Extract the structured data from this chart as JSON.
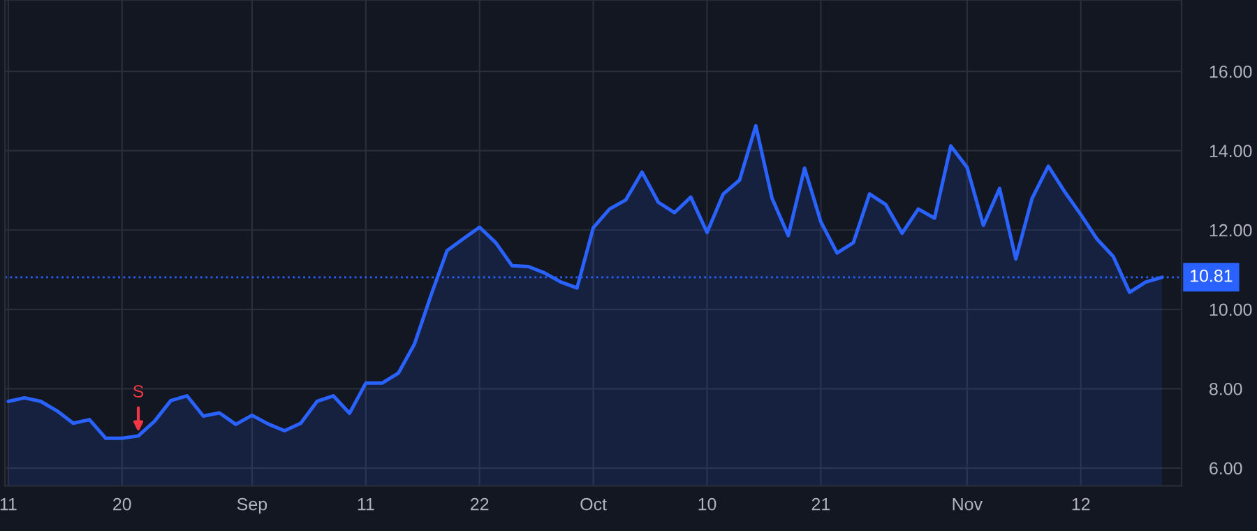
{
  "chart_data": {
    "type": "area",
    "categories": [
      "11",
      null,
      null,
      null,
      null,
      null,
      null,
      "20",
      null,
      null,
      null,
      null,
      null,
      null,
      null,
      "Sep",
      null,
      null,
      null,
      null,
      null,
      null,
      "11",
      null,
      null,
      null,
      null,
      null,
      null,
      "22",
      null,
      null,
      null,
      null,
      null,
      null,
      "Oct",
      null,
      null,
      null,
      null,
      null,
      null,
      "10",
      null,
      null,
      null,
      null,
      null,
      null,
      "21",
      null,
      null,
      null,
      null,
      null,
      null,
      null,
      null,
      "Nov",
      null,
      null,
      null,
      null,
      null,
      null,
      "12",
      null,
      null,
      null,
      null,
      null
    ],
    "series": [
      {
        "color": "#2962ff",
        "values": [
          7.68,
          7.77,
          7.68,
          7.44,
          7.13,
          7.22,
          6.75,
          6.75,
          6.81,
          7.18,
          7.7,
          7.82,
          7.31,
          7.39,
          7.1,
          7.33,
          7.11,
          6.94,
          7.13,
          7.68,
          7.82,
          7.38,
          8.14,
          8.14,
          8.39,
          9.13,
          10.34,
          11.48,
          11.78,
          12.07,
          11.68,
          11.1,
          11.08,
          10.92,
          10.69,
          10.54,
          12.06,
          12.53,
          12.76,
          13.46,
          12.7,
          12.44,
          12.83,
          11.94,
          12.91,
          13.26,
          14.63,
          12.8,
          11.86,
          13.56,
          12.21,
          11.42,
          11.68,
          12.91,
          12.64,
          11.92,
          12.53,
          12.3,
          14.12,
          13.58,
          12.12,
          13.05,
          11.27,
          12.8,
          13.61,
          12.97,
          12.39,
          11.77,
          11.33,
          10.43,
          10.69,
          10.81
        ]
      }
    ],
    "ylim": [
      5.55,
      17.8
    ],
    "yticks": [
      {
        "value": 6,
        "label": "6.00"
      },
      {
        "value": 8,
        "label": "8.00"
      },
      {
        "value": 10,
        "label": "10.00"
      },
      {
        "value": 12,
        "label": "12.00"
      },
      {
        "value": 14,
        "label": "14.00"
      },
      {
        "value": 16,
        "label": "16.00"
      }
    ],
    "ref_lines": [
      {
        "axis": "y",
        "value": 10.81,
        "label": "10.81",
        "color": "#2962ff",
        "line_style": "dotted"
      }
    ],
    "annotations": [
      {
        "text": "S",
        "y": 6.81
      }
    ],
    "grid": true,
    "legend": false,
    "marker": "none",
    "line_style": "solid"
  }
}
